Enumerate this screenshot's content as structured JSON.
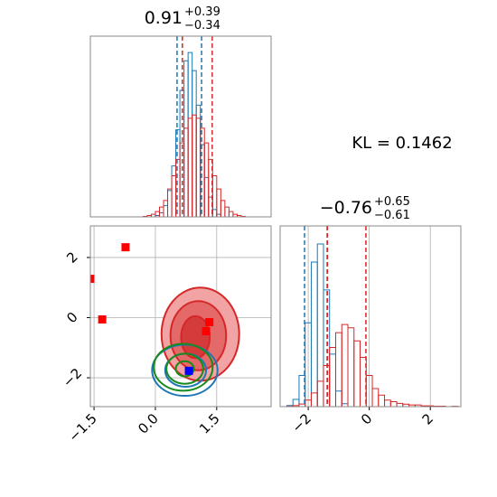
{
  "kl_label": "KL = 0.1462",
  "chart_data": [
    {
      "type": "histogram",
      "title": {
        "value": "0.91",
        "upper": "+0.39",
        "lower": "−0.34"
      },
      "bins": [
        -0.3,
        -0.2,
        -0.1,
        0.0,
        0.1,
        0.2,
        0.3,
        0.4,
        0.5,
        0.6,
        0.7,
        0.8,
        0.9,
        1.0,
        1.1,
        1.2,
        1.3,
        1.4,
        1.5,
        1.6,
        1.7,
        1.8,
        1.9,
        2.0,
        2.1,
        2.2
      ],
      "xlim": [
        -1.59,
        2.83
      ],
      "ylim": [
        0,
        1.1
      ],
      "series": [
        {
          "color": "#1f77b4",
          "quantiles": [
            0.53,
            1.13
          ],
          "values": [
            0,
            0,
            0,
            0.008,
            0.025,
            0.068,
            0.16,
            0.31,
            0.53,
            0.77,
            0.95,
            1.0,
            0.89,
            0.68,
            0.44,
            0.24,
            0.12,
            0.045,
            0.016,
            0,
            0,
            0,
            0,
            0,
            0
          ]
        },
        {
          "color": "#d62728",
          "quantiles": [
            0.66,
            1.39
          ],
          "values": [
            0.003,
            0.008,
            0.016,
            0.032,
            0.06,
            0.1,
            0.17,
            0.25,
            0.35,
            0.45,
            0.54,
            0.6,
            0.62,
            0.6,
            0.54,
            0.45,
            0.35,
            0.25,
            0.17,
            0.1,
            0.06,
            0.032,
            0.016,
            0.008,
            0.003
          ]
        }
      ]
    },
    {
      "type": "contour-scatter",
      "xlim": [
        -1.59,
        2.83
      ],
      "ylim": [
        -2.96,
        3.05
      ],
      "grid": true,
      "xticks": [
        {
          "value": -1.5,
          "label": "−1.5"
        },
        {
          "value": 0,
          "label": "0.0"
        },
        1.5
      ],
      "yticks": [
        {
          "value": -2,
          "label": "−2"
        },
        0,
        2
      ],
      "contours": [
        {
          "color": "#d62728",
          "fills": [
            "#f2a3a3",
            "#e46a6a",
            "#d43b3b"
          ],
          "levels": [
            {
              "cx": 1.1,
              "cy": -0.55,
              "rx": 0.95,
              "ry": 1.55
            },
            {
              "cx": 1.05,
              "cy": -0.6,
              "rx": 0.68,
              "ry": 1.15
            },
            {
              "cx": 0.98,
              "cy": -0.65,
              "rx": 0.35,
              "ry": 0.7
            }
          ]
        },
        {
          "color": "#1f77b4",
          "levels": [
            {
              "cx": 0.72,
              "cy": -1.75,
              "rx": 0.8,
              "ry": 0.85
            },
            {
              "cx": 0.74,
              "cy": -1.75,
              "rx": 0.5,
              "ry": 0.55
            }
          ]
        },
        {
          "color": "#1a8a1a",
          "levels": [
            {
              "cx": 0.68,
              "cy": -1.65,
              "rx": 0.72,
              "ry": 0.78
            },
            {
              "cx": 0.72,
              "cy": -1.7,
              "rx": 0.45,
              "ry": 0.5
            },
            {
              "cx": 0.72,
              "cy": -1.7,
              "rx": 0.22,
              "ry": 0.25
            }
          ]
        }
      ],
      "series": [
        {
          "color": "#ff0000",
          "x": [
            -0.73,
            -1.59,
            -1.3,
            1.32,
            1.24
          ],
          "y": [
            2.34,
            1.29,
            -0.06,
            -0.15,
            -0.45
          ]
        },
        {
          "color": "#0000ff",
          "x": [
            0.82
          ],
          "y": [
            -1.77
          ]
        }
      ]
    },
    {
      "type": "histogram",
      "title": {
        "value": "−0.76",
        "upper": "+0.65",
        "lower": "−0.61"
      },
      "bins": [
        -2.9,
        -2.7,
        -2.5,
        -2.3,
        -2.1,
        -1.9,
        -1.7,
        -1.5,
        -1.3,
        -1.1,
        -0.9,
        -0.7,
        -0.5,
        -0.3,
        -0.1,
        0.1,
        0.3,
        0.5,
        0.7,
        0.9,
        1.1,
        1.3,
        1.5,
        1.7,
        1.9,
        2.1,
        2.3,
        2.5,
        2.7,
        2.9
      ],
      "xlim": [
        -2.92,
        3.0
      ],
      "ylim": [
        0,
        1.1
      ],
      "grid": true,
      "xticks": [
        {
          "value": -2,
          "label": "−2"
        },
        0,
        2
      ],
      "series": [
        {
          "color": "#1f77b4",
          "quantiles": [
            -2.12,
            -1.38
          ],
          "values": [
            0,
            0.007,
            0.044,
            0.19,
            0.51,
            0.88,
            0.99,
            0.71,
            0.32,
            0.095,
            0.018,
            0,
            0,
            0,
            0,
            0,
            0,
            0,
            0,
            0,
            0,
            0,
            0,
            0,
            0,
            0,
            0,
            0,
            0
          ]
        },
        {
          "color": "#d62728",
          "quantiles": [
            -1.37,
            -0.11
          ],
          "values": [
            0,
            0.002,
            0.006,
            0.016,
            0.04,
            0.083,
            0.155,
            0.25,
            0.36,
            0.45,
            0.5,
            0.48,
            0.4,
            0.3,
            0.19,
            0.11,
            0.07,
            0.04,
            0.03,
            0.02,
            0.015,
            0.01,
            0.01,
            0.005,
            0.005,
            0.003,
            0.003,
            0,
            0.002
          ]
        }
      ]
    }
  ]
}
